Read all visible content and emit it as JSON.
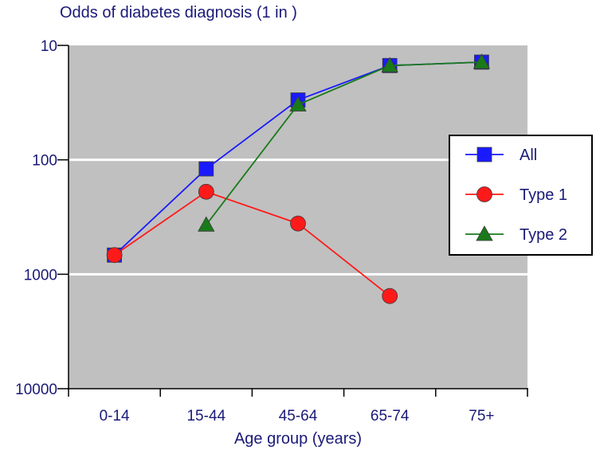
{
  "chart_data": {
    "type": "line",
    "title": "Odds of diabetes diagnosis (1 in )",
    "xlabel": "Age group (years)",
    "ylabel": "",
    "y_scale": "log",
    "y_reversed": true,
    "ylim": [
      10,
      10000
    ],
    "y_ticks": [
      "10",
      "100",
      "1000",
      "10000"
    ],
    "y_tick_values": [
      10,
      100,
      1000,
      10000
    ],
    "categories": [
      "0-14",
      "15-44",
      "45-64",
      "65-74",
      "75+"
    ],
    "grid": "horizontal",
    "legend_position": "right",
    "series": [
      {
        "name": "All",
        "marker": "square",
        "color": "#1a1aff",
        "values": [
          680,
          120,
          30,
          15,
          14
        ]
      },
      {
        "name": "Type 1",
        "marker": "circle",
        "color": "#ff1a1a",
        "values": [
          680,
          190,
          360,
          1550,
          null
        ]
      },
      {
        "name": "Type 2",
        "marker": "triangle",
        "color": "#1a7a1a",
        "values": [
          null,
          370,
          33,
          15,
          14
        ]
      }
    ]
  },
  "style": {
    "plot_background": "#c0c0c0",
    "grid_color": "#ffffff",
    "axis_color": "#000000",
    "text_color": "#1a1a78"
  }
}
